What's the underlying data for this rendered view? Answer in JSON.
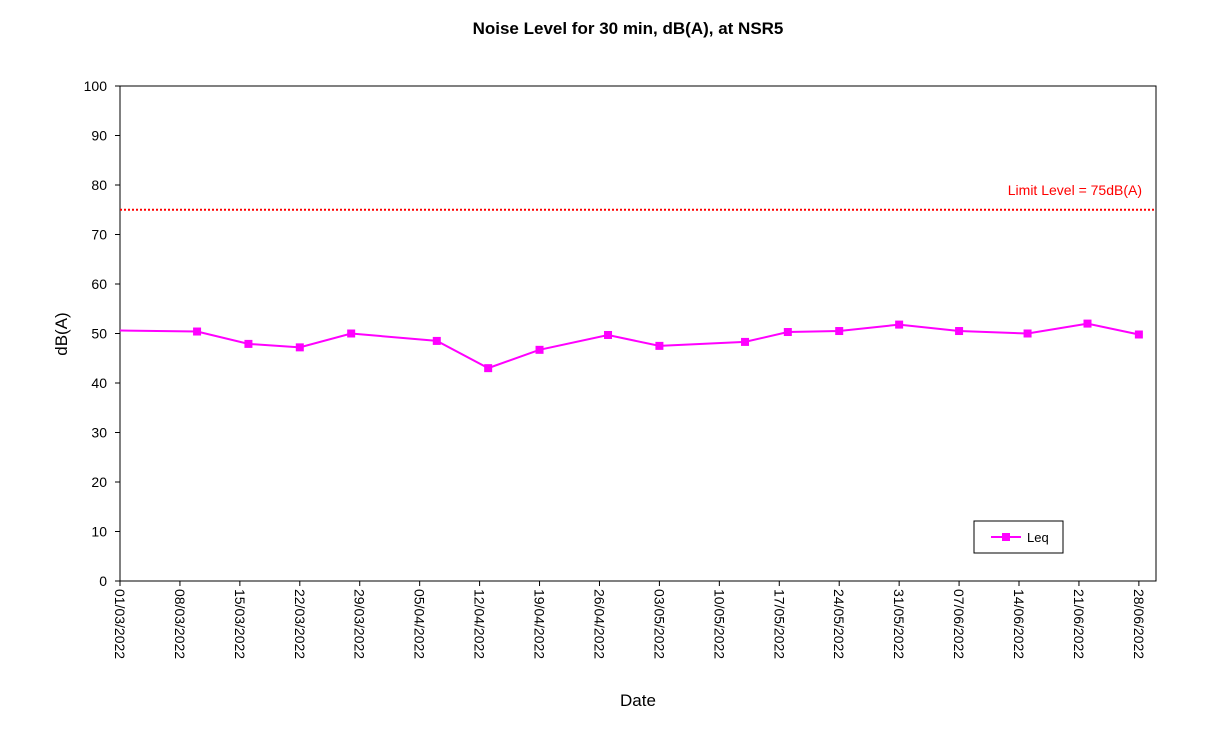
{
  "chart_data": {
    "type": "line",
    "title": "Noise Level for 30 min, dB(A), at NSR5",
    "xlabel": "Date",
    "ylabel": "dB(A)",
    "ylim": [
      0,
      100
    ],
    "yticks": [
      0,
      10,
      20,
      30,
      40,
      50,
      60,
      70,
      80,
      90,
      100
    ],
    "xlim": [
      "01/03/2022",
      "30/06/2022"
    ],
    "xticks": [
      "01/03/2022",
      "08/03/2022",
      "15/03/2022",
      "22/03/2022",
      "29/03/2022",
      "05/04/2022",
      "12/04/2022",
      "19/04/2022",
      "26/04/2022",
      "03/05/2022",
      "10/05/2022",
      "17/05/2022",
      "24/05/2022",
      "31/05/2022",
      "07/06/2022",
      "14/06/2022",
      "21/06/2022",
      "28/06/2022"
    ],
    "grid": false,
    "legend_position": "bottom-right",
    "series": [
      {
        "name": "Leq",
        "color": "#ff00ff",
        "marker": "square",
        "points": [
          {
            "x": "10/03/2022",
            "y": 50.4
          },
          {
            "x": "16/03/2022",
            "y": 47.9
          },
          {
            "x": "22/03/2022",
            "y": 47.2
          },
          {
            "x": "28/03/2022",
            "y": 50.0
          },
          {
            "x": "07/04/2022",
            "y": 48.5
          },
          {
            "x": "13/04/2022",
            "y": 43.0
          },
          {
            "x": "19/04/2022",
            "y": 46.7
          },
          {
            "x": "27/04/2022",
            "y": 49.7
          },
          {
            "x": "03/05/2022",
            "y": 47.5
          },
          {
            "x": "13/05/2022",
            "y": 48.3
          },
          {
            "x": "18/05/2022",
            "y": 50.3
          },
          {
            "x": "24/05/2022",
            "y": 50.5
          },
          {
            "x": "31/05/2022",
            "y": 51.8
          },
          {
            "x": "07/06/2022",
            "y": 50.5
          },
          {
            "x": "15/06/2022",
            "y": 50.0
          },
          {
            "x": "22/06/2022",
            "y": 52.0
          },
          {
            "x": "28/06/2022",
            "y": 49.8
          }
        ],
        "line_start_y": 50.6
      }
    ],
    "reference_lines": [
      {
        "label": "Limit Level = 75dB(A)",
        "y": 75,
        "color": "#ff0000",
        "style": "dotted"
      }
    ]
  }
}
